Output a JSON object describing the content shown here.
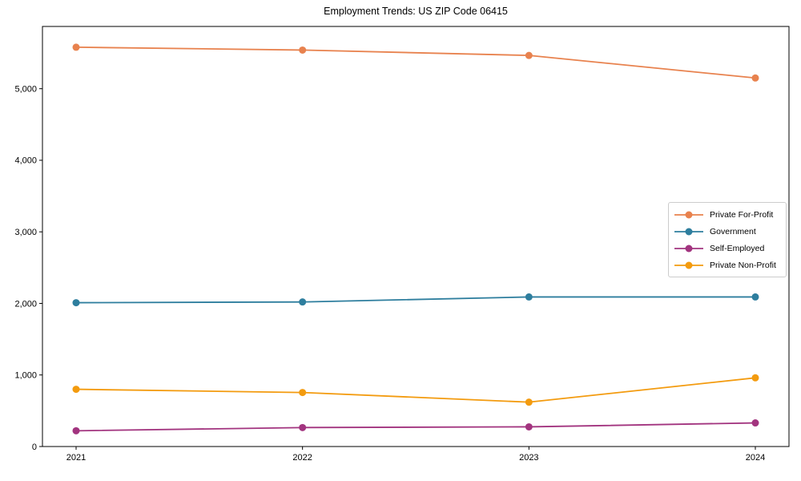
{
  "chart": {
    "title": "Employment Trends: US ZIP Code 06415"
  },
  "chart_data": {
    "type": "line",
    "title": "Employment Trends: US ZIP Code 06415",
    "x": [
      "2021",
      "2022",
      "2023",
      "2024"
    ],
    "series": [
      {
        "name": "Private For-Profit",
        "color": "#e8824e",
        "values": [
          5580,
          5540,
          5465,
          5150
        ]
      },
      {
        "name": "Government",
        "color": "#2e7e9e",
        "values": [
          2010,
          2020,
          2090,
          2090
        ]
      },
      {
        "name": "Self-Employed",
        "color": "#a2347f",
        "values": [
          220,
          265,
          275,
          330
        ]
      },
      {
        "name": "Private Non-Profit",
        "color": "#f39b0f",
        "values": [
          800,
          755,
          620,
          960
        ]
      }
    ],
    "xlabel": "",
    "ylabel": "",
    "ylim": [
      0,
      5870
    ],
    "yticks": [
      0,
      1000,
      2000,
      3000,
      4000,
      5000
    ],
    "ytick_labels": [
      "0",
      "1,000",
      "2,000",
      "3,000",
      "4,000",
      "5,000"
    ],
    "grid": false,
    "legend_position": "center right",
    "marker": "circle",
    "axis_color": "#000000"
  }
}
